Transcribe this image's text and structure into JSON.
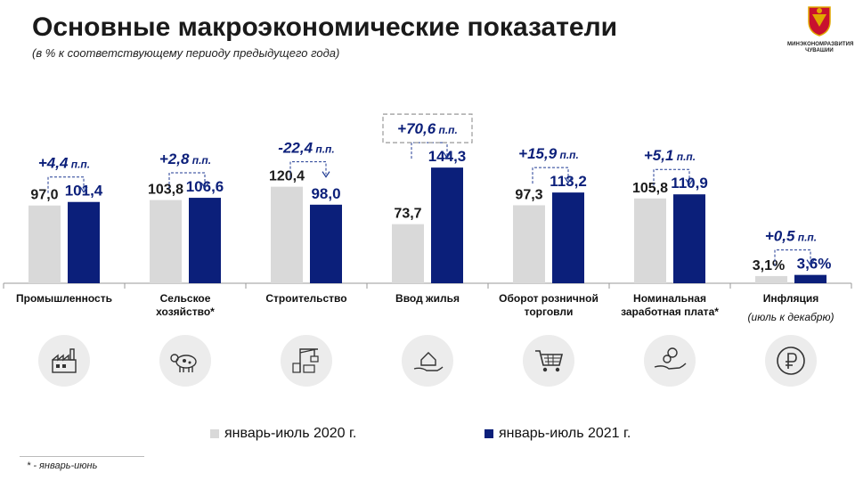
{
  "header": {
    "title": "Основные макроэкономические показатели",
    "subtitle": "(в % к соответствующему периоду предыдущего года)",
    "logo_line1": "МИНЭКОНОМРАЗВИТИЯ",
    "logo_line2": "ЧУВАШИИ"
  },
  "chart_data": {
    "type": "bar",
    "categories": [
      "Промышленность",
      "Сельское хозяйство*",
      "Строительство",
      "Ввод жилья",
      "Оборот розничной торговли",
      "Номинальная заработная плата*",
      "Инфляция"
    ],
    "category_lines": [
      [
        "Промышленность"
      ],
      [
        "Сельское",
        "хозяйство*"
      ],
      [
        "Строительство"
      ],
      [
        "Ввод жилья"
      ],
      [
        "Оборот розничной",
        "торговли"
      ],
      [
        "Номинальная",
        "заработная плата*"
      ],
      [
        "Инфляция"
      ]
    ],
    "category_notes": [
      "",
      "",
      "",
      "",
      "",
      "",
      "(июль к декабрю)"
    ],
    "series": [
      {
        "name": "январь-июль 2020 г.",
        "color": "#d9d9d9",
        "values": [
          97.0,
          103.8,
          120.4,
          73.7,
          97.3,
          105.8,
          3.1
        ],
        "labels": [
          "97,0",
          "103,8",
          "120,4",
          "73,7",
          "97,3",
          "105,8",
          "3,1%"
        ]
      },
      {
        "name": "январь-июль 2021 г.",
        "color": "#0b1f7a",
        "values": [
          101.4,
          106.6,
          98.0,
          144.3,
          113.2,
          110.9,
          3.6
        ],
        "labels": [
          "101,4",
          "106,6",
          "98,0",
          "144,3",
          "113,2",
          "110,9",
          "3,6%"
        ]
      }
    ],
    "change_value": [
      "+4,4",
      "+2,8",
      "-22,4",
      "+70,6",
      "+15,9",
      "+5,1",
      "+0,5"
    ],
    "change_unit": "п.п.",
    "highlight_index": 3,
    "ylim": [
      0,
      150
    ],
    "xlabel": "",
    "ylabel": "",
    "title": "",
    "legend_position": "bottom",
    "grid": false
  },
  "icons": [
    "factory-icon",
    "cow-icon",
    "construction-crane-icon",
    "house-in-hand-icon",
    "shopping-cart-icon",
    "coins-in-hand-icon",
    "ruble-icon"
  ],
  "footnote": "* - январь-июнь",
  "colors": {
    "bar_2020": "#d9d9d9",
    "bar_2021": "#0b1f7a",
    "accent": "#1f3a93"
  }
}
